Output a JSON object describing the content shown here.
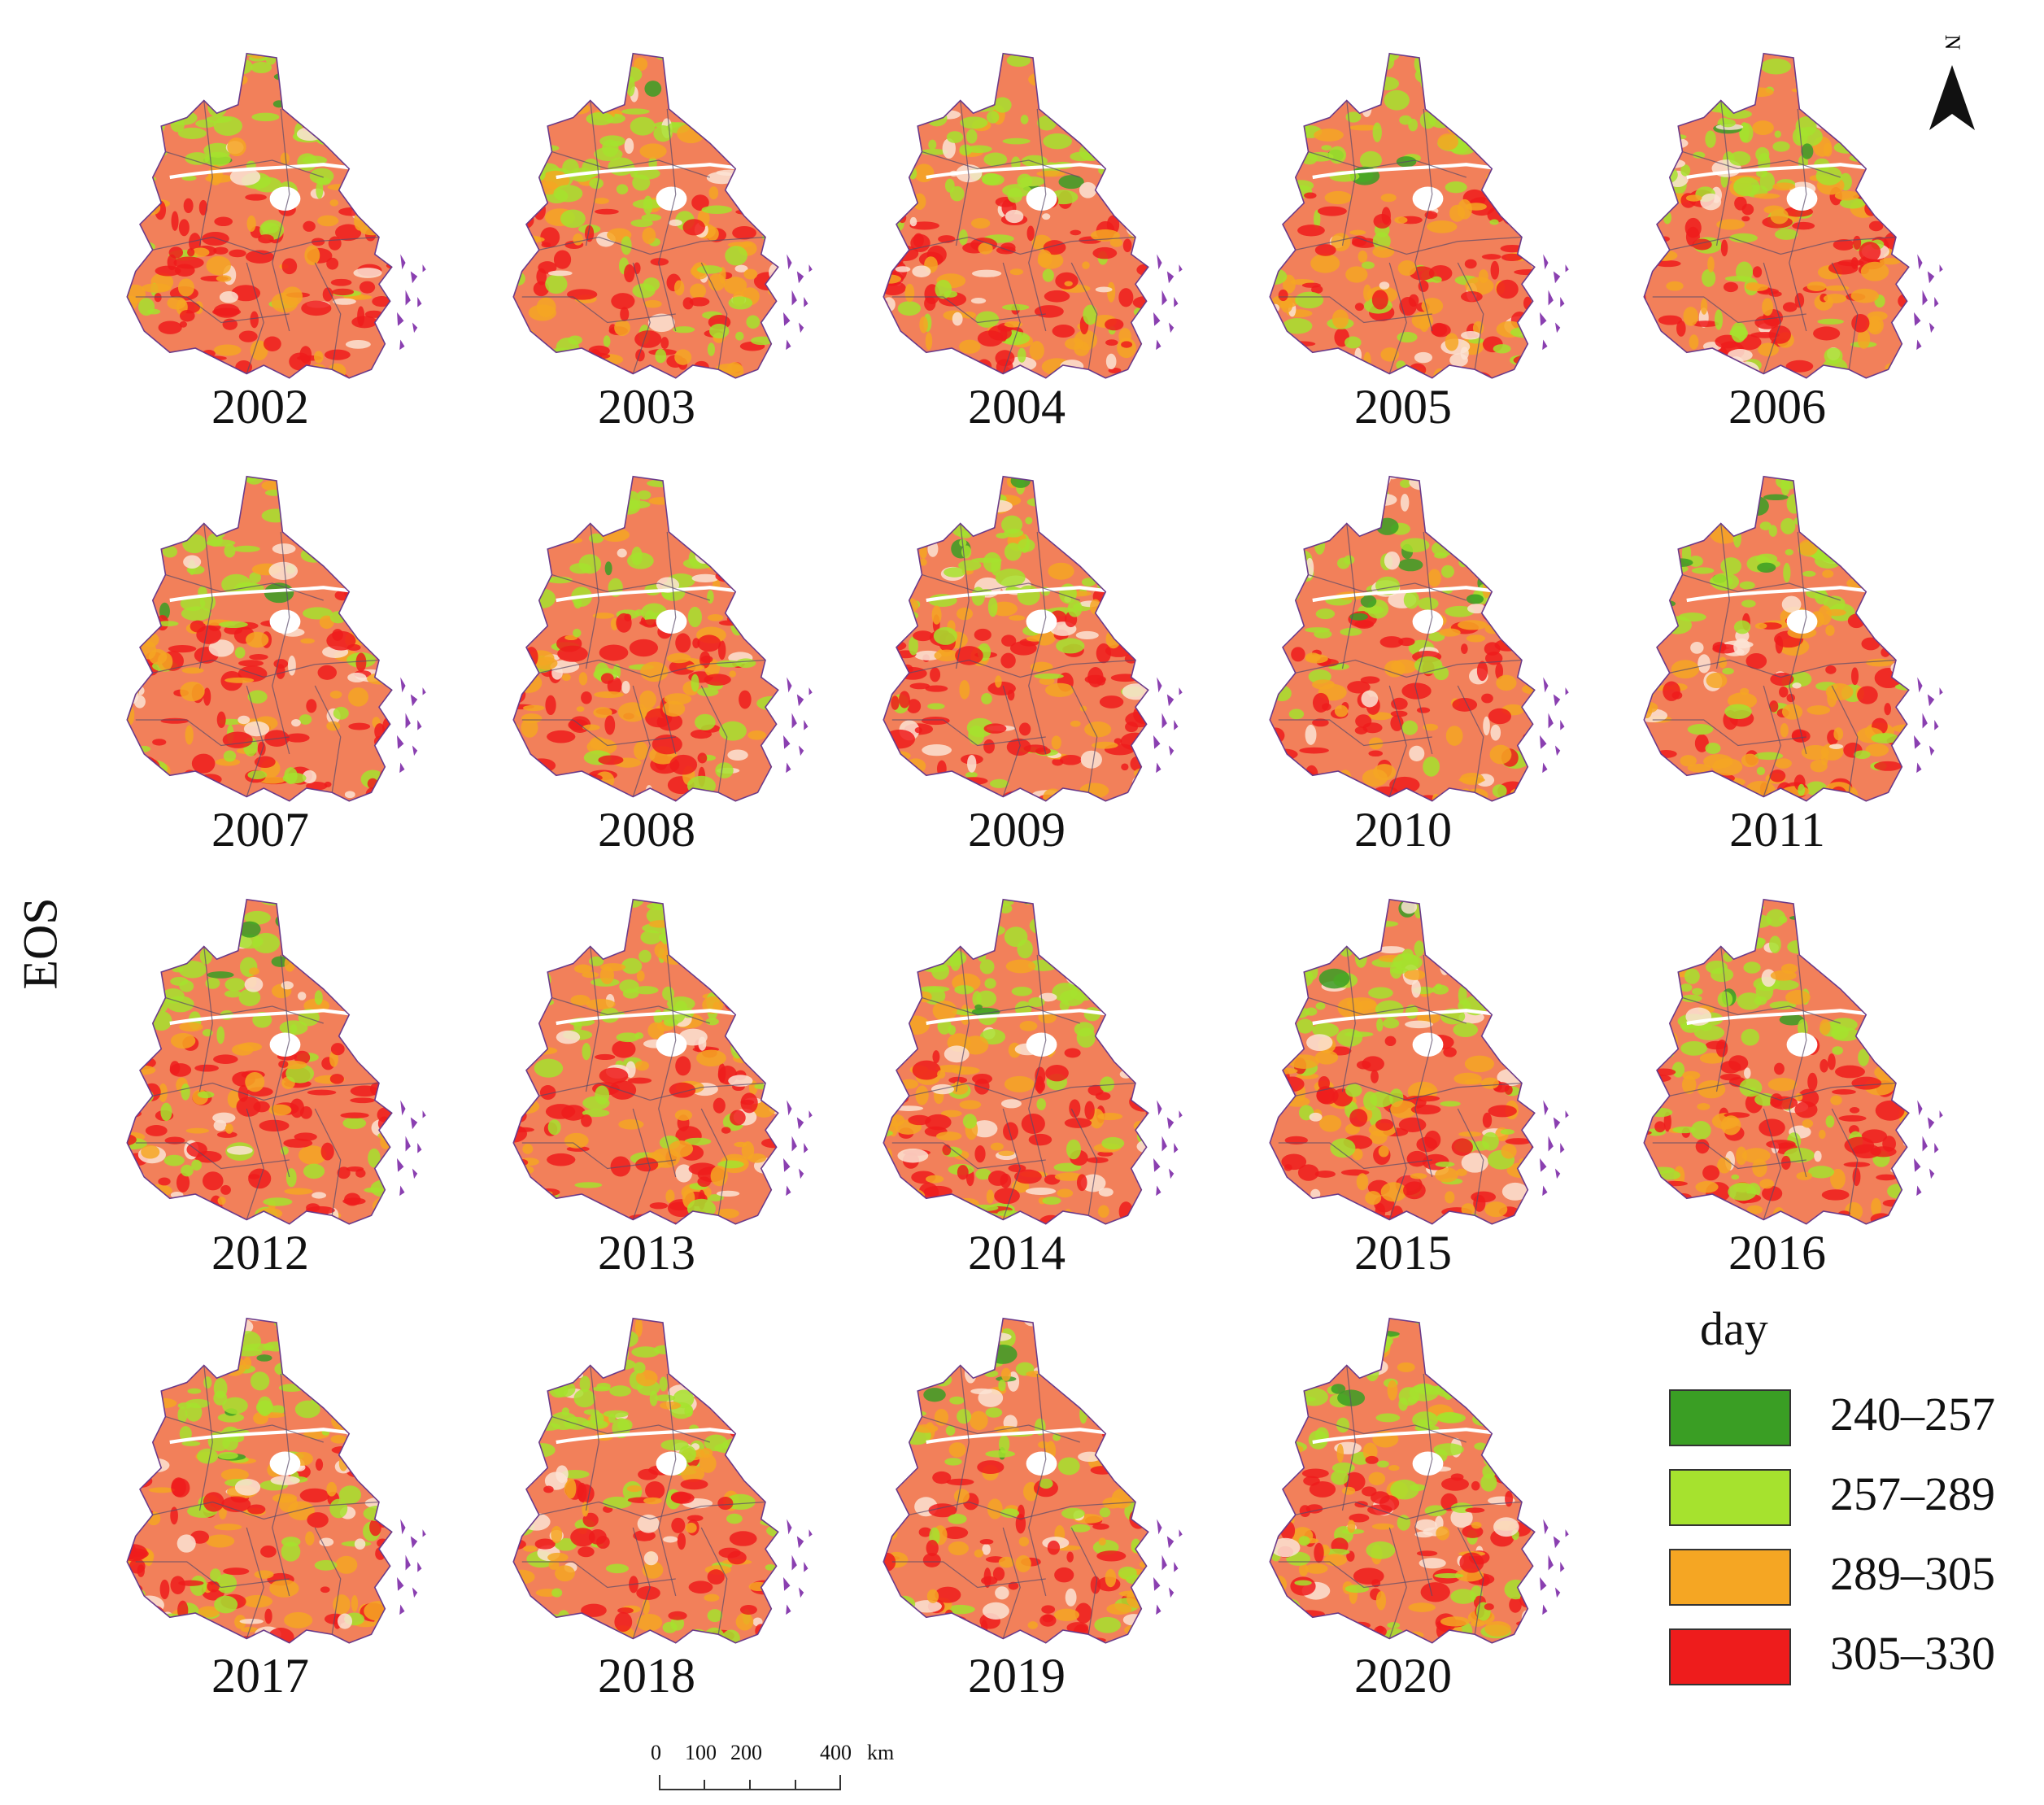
{
  "figure": {
    "y_axis_label": "EOS",
    "panels": [
      {
        "year": "2002"
      },
      {
        "year": "2003"
      },
      {
        "year": "2004"
      },
      {
        "year": "2005"
      },
      {
        "year": "2006"
      },
      {
        "year": "2007"
      },
      {
        "year": "2008"
      },
      {
        "year": "2009"
      },
      {
        "year": "2010"
      },
      {
        "year": "2011"
      },
      {
        "year": "2012"
      },
      {
        "year": "2013"
      },
      {
        "year": "2014"
      },
      {
        "year": "2015"
      },
      {
        "year": "2016"
      },
      {
        "year": "2017"
      },
      {
        "year": "2018"
      },
      {
        "year": "2019"
      },
      {
        "year": "2020"
      }
    ]
  },
  "legend": {
    "title": "day",
    "classes": [
      {
        "label": "240–257",
        "color": "#3a9e24"
      },
      {
        "label": "257–289",
        "color": "#a6e22e"
      },
      {
        "label": "289–305",
        "color": "#f5a623"
      },
      {
        "label": "305–330",
        "color": "#ee1c1c"
      }
    ]
  },
  "north_arrow": {
    "label": "N"
  },
  "scale_bar": {
    "ticks": [
      "0",
      "100",
      "200",
      "400"
    ],
    "unit": "km"
  },
  "colors": {
    "boundary": "#6a3a8a",
    "background": "#ffffff"
  }
}
